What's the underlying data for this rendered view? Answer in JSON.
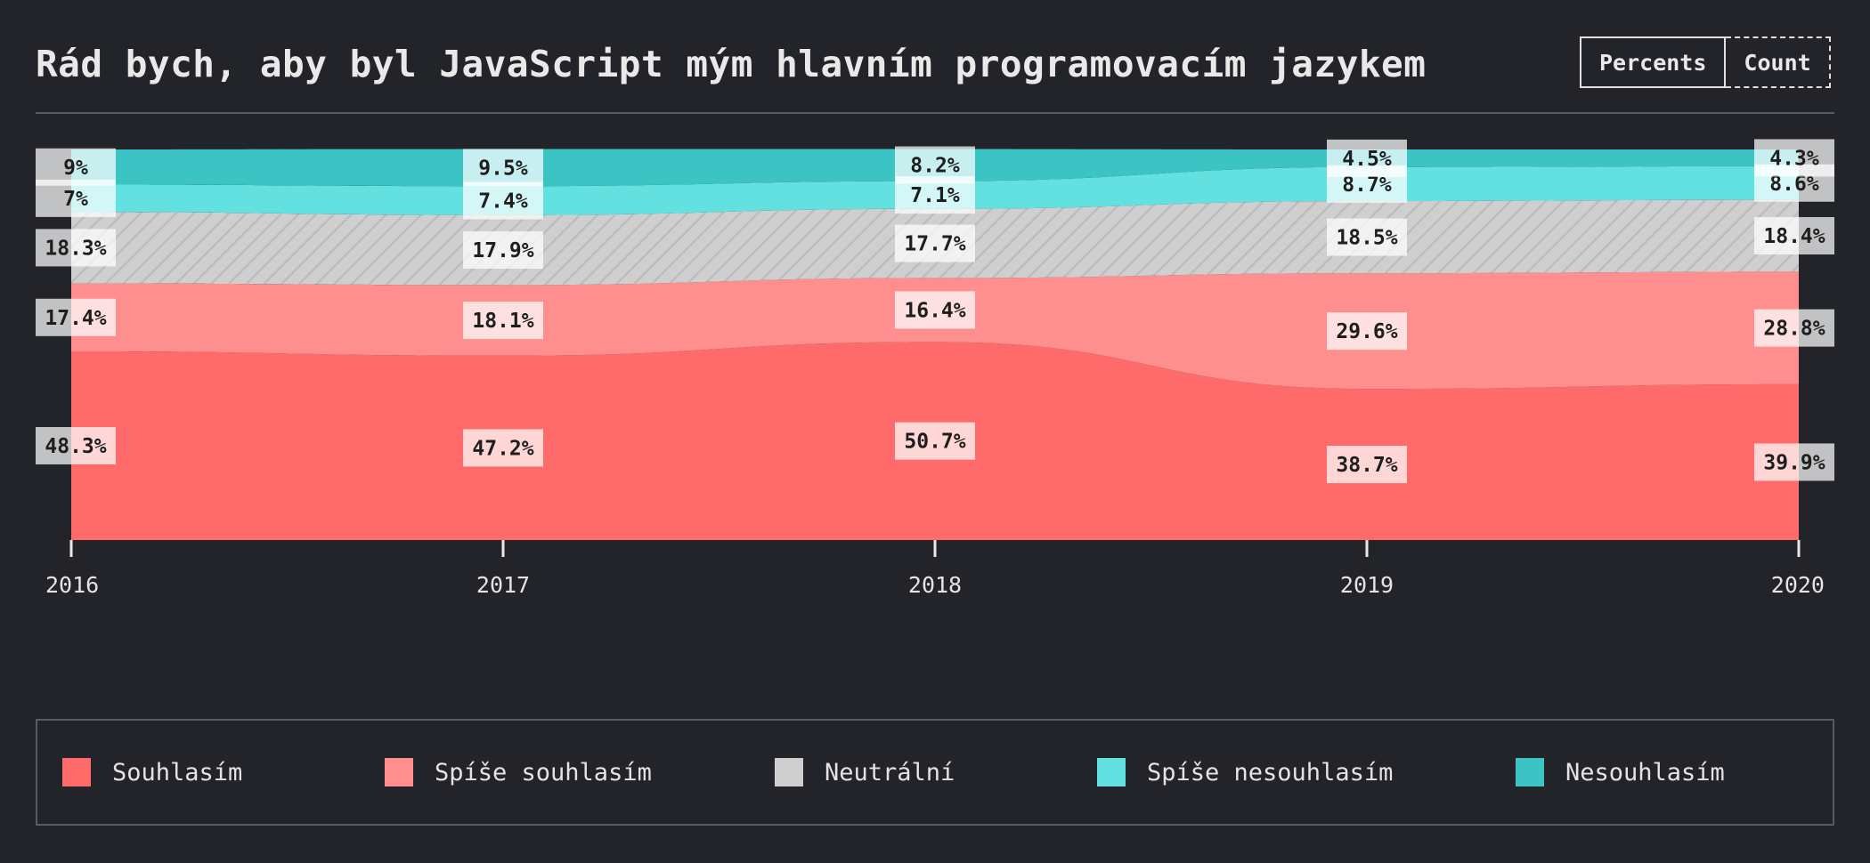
{
  "title": "Rád bych, aby byl JavaScript mým hlavním programovacím jazykem",
  "toggle": {
    "percents_label": "Percents",
    "count_label": "Count",
    "active": "Percents"
  },
  "colors": {
    "background": "#232429",
    "souhlasim": "#ff6b6b",
    "spise_souhlasim": "#ff8f8f",
    "neutralni": "#cfcfcf",
    "spise_nesouhlasim": "#63e0e0",
    "nesouhlasim": "#3cc4c4"
  },
  "chart_data": {
    "type": "area",
    "stacked": true,
    "normalized": true,
    "x": [
      "2016",
      "2017",
      "2018",
      "2019",
      "2020"
    ],
    "series": [
      {
        "name": "Souhlasím",
        "values": [
          48.3,
          47.2,
          50.7,
          38.7,
          39.9
        ],
        "labels": [
          "48.3%",
          "47.2%",
          "50.7%",
          "38.7%",
          "39.9%"
        ],
        "color": "#ff6b6b"
      },
      {
        "name": "Spíše souhlasím",
        "values": [
          17.4,
          18.1,
          16.4,
          29.6,
          28.8
        ],
        "labels": [
          "17.4%",
          "18.1%",
          "16.4%",
          "29.6%",
          "28.8%"
        ],
        "color": "#ff8f8f"
      },
      {
        "name": "Neutrální",
        "values": [
          18.3,
          17.9,
          17.7,
          18.5,
          18.4
        ],
        "labels": [
          "18.3%",
          "17.9%",
          "17.7%",
          "18.5%",
          "18.4%"
        ],
        "color": "#cfcfcf"
      },
      {
        "name": "Spíše nesouhlasím",
        "values": [
          7,
          7.4,
          7.1,
          8.7,
          8.6
        ],
        "labels": [
          "7%",
          "7.4%",
          "7.1%",
          "8.7%",
          "8.6%"
        ],
        "color": "#63e0e0"
      },
      {
        "name": "Nesouhlasím",
        "values": [
          9,
          9.5,
          8.2,
          4.5,
          4.3
        ],
        "labels": [
          "9%",
          "9.5%",
          "8.2%",
          "4.5%",
          "4.3%"
        ],
        "color": "#3cc4c4"
      }
    ],
    "ylim": [
      0,
      100
    ],
    "legend_position": "bottom"
  },
  "legend": [
    {
      "label": "Souhlasím",
      "color": "#ff6b6b"
    },
    {
      "label": "Spíše souhlasím",
      "color": "#ff8f8f"
    },
    {
      "label": "Neutrální",
      "color": "#cfcfcf"
    },
    {
      "label": "Spíše nesouhlasím",
      "color": "#63e0e0"
    },
    {
      "label": "Nesouhlasím",
      "color": "#3cc4c4"
    }
  ]
}
